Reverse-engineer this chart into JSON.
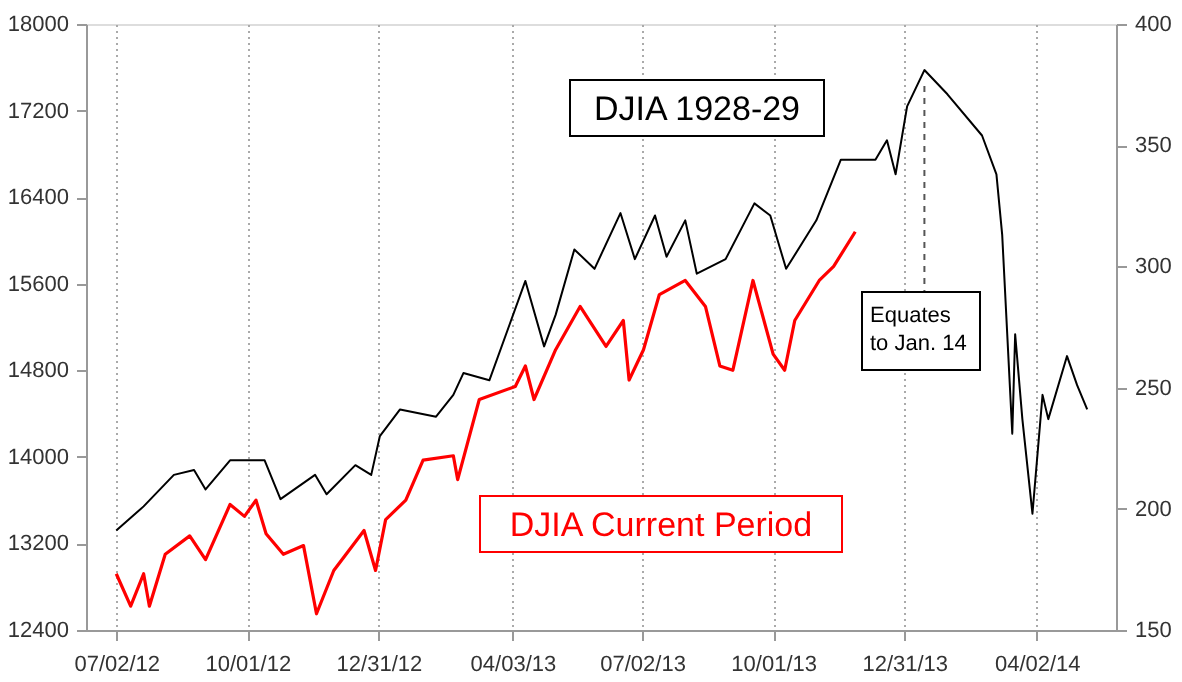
{
  "chart_data": {
    "type": "line",
    "xlim": [
      "2012-06-11",
      "2014-05-27"
    ],
    "xticks": [
      {
        "value": "2012-07-02",
        "label": "07/02/12"
      },
      {
        "value": "2012-10-01",
        "label": "10/01/12"
      },
      {
        "value": "2012-12-31",
        "label": "12/31/12"
      },
      {
        "value": "2013-04-03",
        "label": "04/03/13"
      },
      {
        "value": "2013-07-02",
        "label": "07/02/13"
      },
      {
        "value": "2013-10-01",
        "label": "10/01/13"
      },
      {
        "value": "2013-12-31",
        "label": "12/31/13"
      },
      {
        "value": "2014-04-02",
        "label": "04/02/14"
      }
    ],
    "ylim": [
      12400,
      18000
    ],
    "yticks": [
      12400,
      13200,
      14000,
      14800,
      15600,
      16400,
      17200,
      18000
    ],
    "y2lim": [
      150,
      400
    ],
    "y2ticks": [
      150,
      200,
      250,
      300,
      350,
      400
    ],
    "grid": "x",
    "annotations": [
      {
        "text": "Equates to Jan. 14",
        "x": "2014-01-14"
      }
    ],
    "series": [
      {
        "name": "DJIA 1928-29",
        "color": "#000000",
        "axis": "y2",
        "x": [
          "2012-07-02",
          "2012-07-21",
          "2012-08-11",
          "2012-08-25",
          "2012-09-02",
          "2012-09-19",
          "2012-10-13",
          "2012-10-24",
          "2012-11-17",
          "2012-11-25",
          "2012-12-15",
          "2012-12-26",
          "2013-01-01",
          "2013-01-15",
          "2013-02-09",
          "2013-02-21",
          "2013-02-28",
          "2013-03-18",
          "2013-04-12",
          "2013-04-25",
          "2013-05-03",
          "2013-05-16",
          "2013-05-30",
          "2013-06-17",
          "2013-06-27",
          "2013-07-11",
          "2013-07-19",
          "2013-08-01",
          "2013-08-09",
          "2013-08-29",
          "2013-09-18",
          "2013-09-29",
          "2013-10-10",
          "2013-10-31",
          "2013-11-17",
          "2013-12-11",
          "2013-12-19",
          "2013-12-25",
          "2014-01-02",
          "2014-01-14",
          "2014-01-30",
          "2014-02-23",
          "2014-03-05",
          "2014-03-09",
          "2014-03-16",
          "2014-03-18",
          "2014-03-23",
          "2014-03-30",
          "2014-04-06",
          "2014-04-10",
          "2014-04-23",
          "2014-04-30",
          "2014-05-07"
        ],
        "values": [
          191,
          201,
          214,
          216,
          208,
          220,
          220,
          204,
          214,
          206,
          218,
          214,
          230,
          241,
          238,
          247,
          256,
          253,
          294,
          267,
          280,
          307,
          299,
          322,
          303,
          321,
          304,
          319,
          297,
          303,
          326,
          321,
          299,
          319,
          344,
          344,
          352,
          338,
          366,
          381,
          371,
          354,
          338,
          313,
          231,
          272,
          237,
          198,
          247,
          237,
          263,
          251,
          241
        ]
      },
      {
        "name": "DJIA Current Period",
        "color": "#ff0000",
        "x": [
          "2012-07-02",
          "2012-07-12",
          "2012-07-21",
          "2012-07-25",
          "2012-08-05",
          "2012-08-22",
          "2012-09-02",
          "2012-09-19",
          "2012-09-29",
          "2012-10-07",
          "2012-10-14",
          "2012-10-26",
          "2012-11-09",
          "2012-11-18",
          "2012-11-30",
          "2012-12-21",
          "2012-12-29",
          "2013-01-05",
          "2013-01-19",
          "2013-01-31",
          "2013-02-21",
          "2013-02-24",
          "2013-03-11",
          "2013-04-05",
          "2013-04-12",
          "2013-04-18",
          "2013-05-03",
          "2013-05-20",
          "2013-06-07",
          "2013-06-19",
          "2013-06-23",
          "2013-07-03",
          "2013-07-14",
          "2013-08-01",
          "2013-08-15",
          "2013-08-25",
          "2013-09-03",
          "2013-09-17",
          "2013-10-01",
          "2013-10-09",
          "2013-10-16",
          "2013-11-02",
          "2013-11-12",
          "2013-11-27"
        ],
        "values": [
          12920,
          12620,
          12920,
          12620,
          13100,
          13270,
          13050,
          13560,
          13450,
          13600,
          13290,
          13100,
          13180,
          12550,
          12950,
          13320,
          12950,
          13420,
          13600,
          13970,
          14010,
          13790,
          14530,
          14650,
          14840,
          14530,
          14990,
          15390,
          15020,
          15260,
          14710,
          14990,
          15500,
          15630,
          15390,
          14840,
          14800,
          15630,
          14950,
          14800,
          15260,
          15630,
          15760,
          16080
        ]
      }
    ]
  }
}
